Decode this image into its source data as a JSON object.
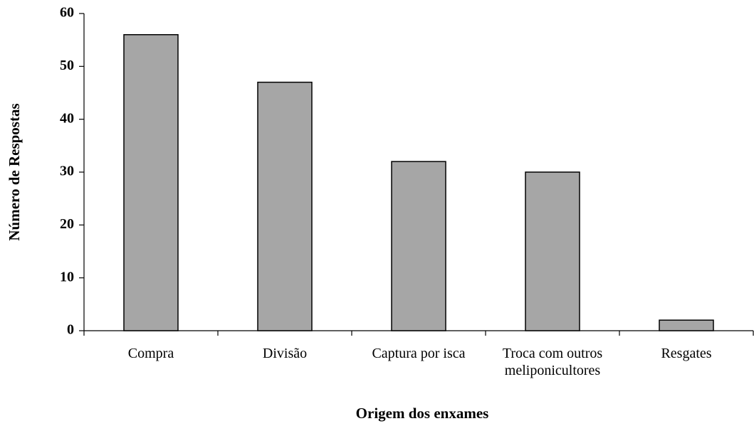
{
  "chart_data": {
    "type": "bar",
    "xlabel": "Origem dos enxames",
    "ylabel": "Número de Respostas",
    "categories": [
      "Compra",
      "Divisão",
      "Captura por isca",
      "Troca com outros meliponicultores",
      "Resgates"
    ],
    "values": [
      56,
      47,
      32,
      30,
      2
    ],
    "color": "#a6a6a6",
    "ylim": [
      0,
      60
    ],
    "yticks": [
      0,
      10,
      20,
      30,
      40,
      50,
      60
    ],
    "grid": false
  }
}
